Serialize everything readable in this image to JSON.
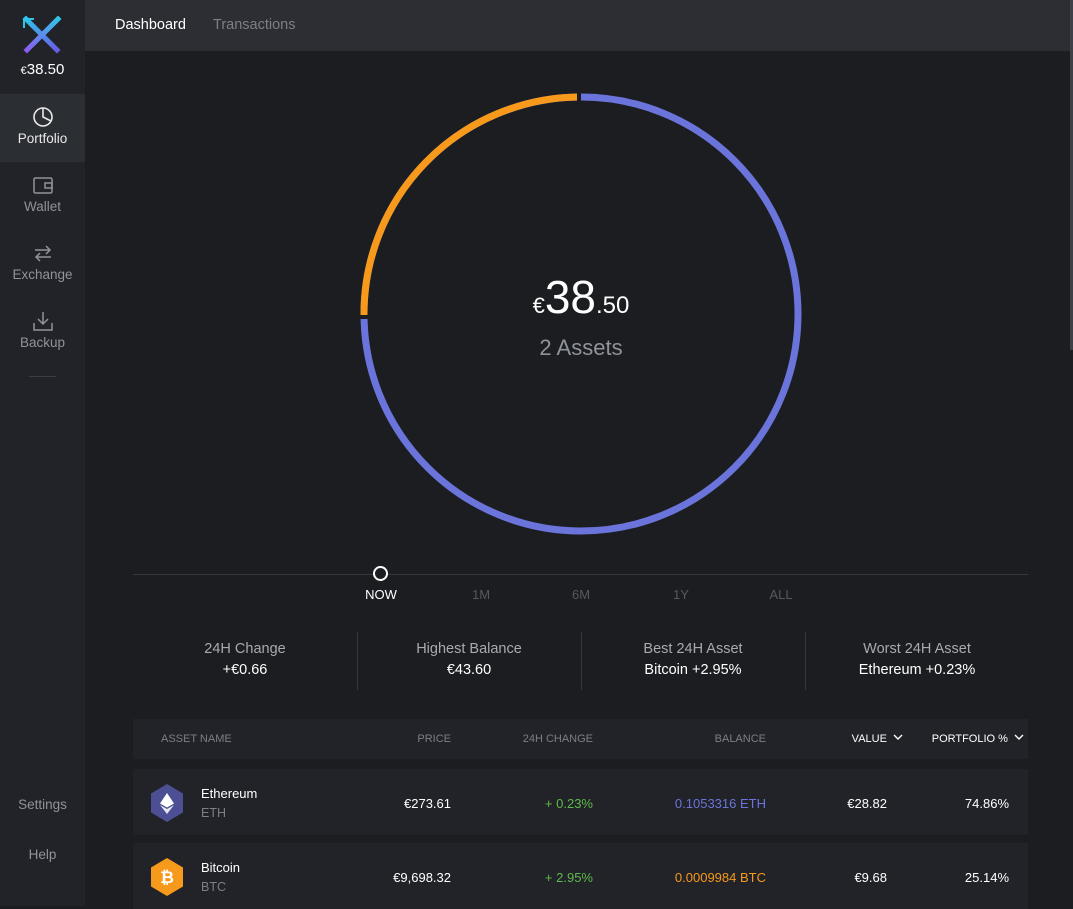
{
  "sidebar": {
    "balance": {
      "currency": "€",
      "amount": "38.50"
    },
    "nav": [
      {
        "label": "Portfolio"
      },
      {
        "label": "Wallet"
      },
      {
        "label": "Exchange"
      },
      {
        "label": "Backup"
      }
    ],
    "settings_label": "Settings",
    "help_label": "Help"
  },
  "tabs": [
    {
      "label": "Dashboard"
    },
    {
      "label": "Transactions"
    }
  ],
  "portfolio": {
    "currency": "€",
    "whole": "38",
    "fraction": ".50",
    "assets_label": "2 Assets"
  },
  "timeline": [
    "NOW",
    "1M",
    "6M",
    "1Y",
    "ALL"
  ],
  "stats": [
    {
      "label": "24H Change",
      "value": "+€0.66"
    },
    {
      "label": "Highest Balance",
      "value": "€43.60"
    },
    {
      "label": "Best 24H Asset",
      "value": "Bitcoin +2.95%"
    },
    {
      "label": "Worst 24H Asset",
      "value": "Ethereum +0.23%"
    }
  ],
  "table": {
    "headers": {
      "asset_name": "ASSET NAME",
      "price": "PRICE",
      "change": "24H CHANGE",
      "balance": "BALANCE",
      "value": "VALUE",
      "portfolio": "PORTFOLIO %"
    },
    "rows": [
      {
        "name": "Ethereum",
        "symbol": "ETH",
        "price": "€273.61",
        "change": "+ 0.23%",
        "balance": "0.1053316 ETH",
        "value": "€28.82",
        "portfolio": "74.86%"
      },
      {
        "name": "Bitcoin",
        "symbol": "BTC",
        "price": "€9,698.32",
        "change": "+ 2.95%",
        "balance": "0.0009984 BTC",
        "value": "€9.68",
        "portfolio": "25.14%"
      }
    ]
  },
  "colors": {
    "eth": "#6b74db",
    "btc": "#f7991a",
    "positive": "#5fb94a",
    "eth_icon_bg": "#4c4f93"
  },
  "icons": [
    "exodus-logo-icon",
    "pie-chart-icon",
    "wallet-icon",
    "exchange-arrows-icon",
    "backup-download-icon",
    "chevron-down-icon",
    "ethereum-icon",
    "bitcoin-icon"
  ]
}
